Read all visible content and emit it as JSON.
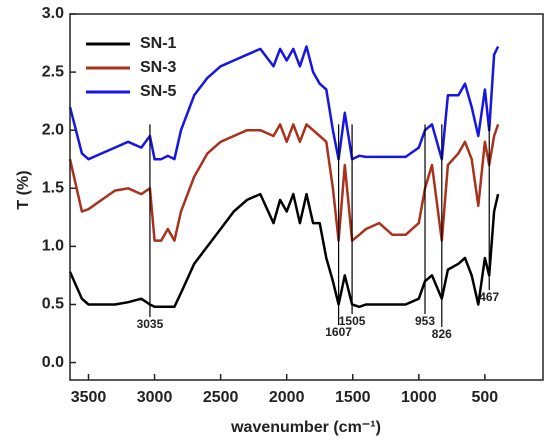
{
  "chart_data": {
    "type": "line",
    "xlabel": "wavenumber (cm⁻¹)",
    "ylabel": "T (%)",
    "x": [
      3640,
      3550,
      3500,
      3400,
      3300,
      3200,
      3100,
      3035,
      3000,
      2950,
      2900,
      2850,
      2800,
      2700,
      2600,
      2500,
      2400,
      2300,
      2200,
      2100,
      2050,
      2000,
      1950,
      1900,
      1850,
      1800,
      1750,
      1700,
      1650,
      1607,
      1560,
      1505,
      1450,
      1400,
      1300,
      1200,
      1100,
      1000,
      953,
      900,
      826,
      780,
      700,
      650,
      600,
      550,
      500,
      467,
      430,
      400
    ],
    "series": [
      {
        "name": "SN-1",
        "color": "#000000",
        "values": [
          0.78,
          0.55,
          0.5,
          0.5,
          0.5,
          0.52,
          0.55,
          0.5,
          0.48,
          0.48,
          0.48,
          0.48,
          0.6,
          0.85,
          1.0,
          1.15,
          1.3,
          1.4,
          1.45,
          1.2,
          1.4,
          1.3,
          1.45,
          1.2,
          1.45,
          1.2,
          1.2,
          0.9,
          0.7,
          0.5,
          0.75,
          0.5,
          0.48,
          0.5,
          0.5,
          0.5,
          0.5,
          0.55,
          0.7,
          0.75,
          0.55,
          0.8,
          0.85,
          0.9,
          0.75,
          0.5,
          0.9,
          0.75,
          1.3,
          1.45
        ]
      },
      {
        "name": "SN-3",
        "color": "#a8321c",
        "values": [
          1.75,
          1.3,
          1.32,
          1.4,
          1.48,
          1.5,
          1.45,
          1.5,
          1.05,
          1.05,
          1.15,
          1.05,
          1.3,
          1.6,
          1.8,
          1.9,
          1.95,
          2.0,
          2.0,
          1.95,
          2.05,
          1.9,
          2.05,
          1.9,
          2.05,
          2.0,
          1.95,
          1.9,
          1.5,
          1.05,
          1.7,
          1.05,
          1.1,
          1.15,
          1.2,
          1.1,
          1.1,
          1.2,
          1.5,
          1.7,
          1.05,
          1.7,
          1.8,
          1.9,
          1.75,
          1.35,
          1.9,
          1.7,
          1.95,
          2.05
        ]
      },
      {
        "name": "SN-5",
        "color": "#1515e6",
        "values": [
          2.2,
          1.8,
          1.75,
          1.8,
          1.85,
          1.9,
          1.85,
          1.95,
          1.75,
          1.75,
          1.78,
          1.75,
          2.0,
          2.3,
          2.45,
          2.55,
          2.6,
          2.65,
          2.7,
          2.55,
          2.7,
          2.6,
          2.7,
          2.55,
          2.72,
          2.5,
          2.4,
          2.35,
          2.0,
          1.75,
          2.15,
          1.75,
          1.78,
          1.77,
          1.77,
          1.77,
          1.77,
          1.85,
          2.0,
          2.05,
          1.75,
          2.3,
          2.3,
          2.4,
          2.2,
          1.95,
          2.35,
          2.0,
          2.65,
          2.72
        ]
      }
    ],
    "annotations": [
      3035,
      1607,
      1505,
      953,
      826,
      467
    ],
    "xlim": [
      3640,
      60
    ],
    "xticks": [
      3500,
      3000,
      2500,
      2000,
      1500,
      1000,
      500
    ],
    "ylim": [
      -0.15,
      3.0
    ],
    "yticks": [
      {
        "value": 0,
        "label": "0.0"
      },
      0.5,
      {
        "value": 1,
        "label": "1.0"
      },
      1.5,
      {
        "value": 2,
        "label": "2.0"
      },
      2.5,
      {
        "value": 3,
        "label": "3.0"
      }
    ],
    "legend": "upper left"
  }
}
